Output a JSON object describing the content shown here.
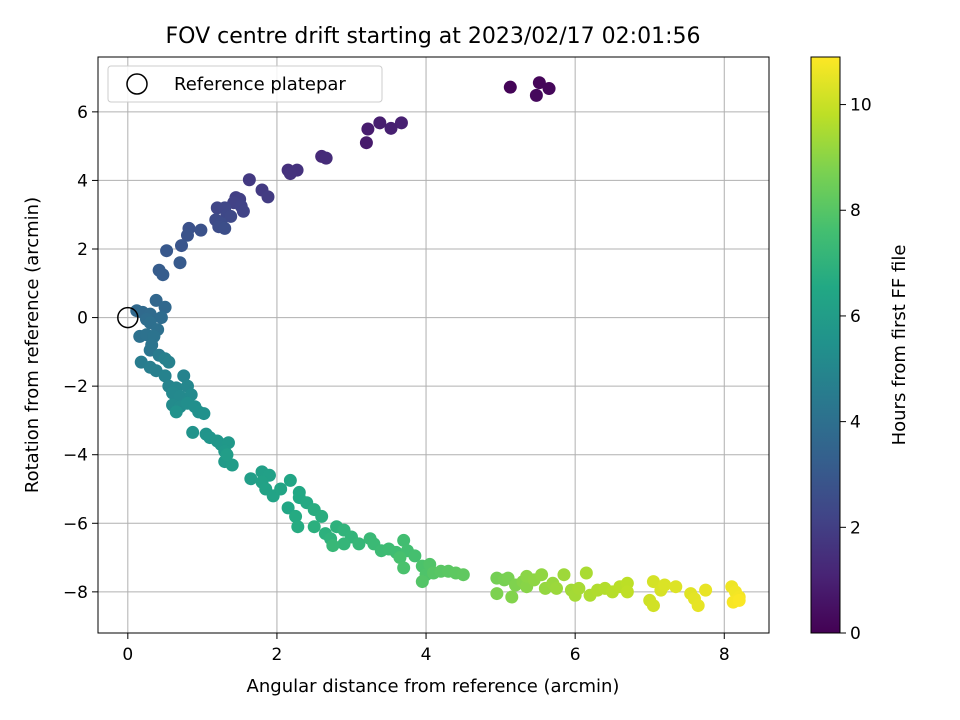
{
  "chart_data": {
    "type": "scatter",
    "title": "FOV centre drift starting at 2023/02/17 02:01:56",
    "xlabel": "Angular distance from reference (arcmin)",
    "ylabel": "Rotation from reference (arcmin)",
    "xlim": [
      -0.4,
      8.6
    ],
    "ylim": [
      -9.2,
      7.6
    ],
    "xticks": [
      0,
      2,
      4,
      6,
      8
    ],
    "yticks": [
      -8,
      -6,
      -4,
      -2,
      0,
      2,
      4,
      6
    ],
    "grid": true,
    "legend": {
      "position": "top-left",
      "entries": [
        "Reference platepar"
      ]
    },
    "reference": {
      "x": 0,
      "y": 0
    },
    "colorbar": {
      "label": "Hours from first FF file",
      "range": [
        0,
        10.9
      ],
      "ticks": [
        0,
        2,
        4,
        6,
        8,
        10
      ],
      "colormap": "viridis"
    },
    "points": [
      {
        "x": 5.13,
        "y": 6.72,
        "c": 0.1
      },
      {
        "x": 5.52,
        "y": 6.85,
        "c": 0.15
      },
      {
        "x": 5.65,
        "y": 6.68,
        "c": 0.2
      },
      {
        "x": 5.48,
        "y": 6.48,
        "c": 0.25
      },
      {
        "x": 3.2,
        "y": 5.1,
        "c": 0.8
      },
      {
        "x": 3.22,
        "y": 5.5,
        "c": 0.85
      },
      {
        "x": 3.38,
        "y": 5.68,
        "c": 0.9
      },
      {
        "x": 3.53,
        "y": 5.52,
        "c": 0.95
      },
      {
        "x": 3.67,
        "y": 5.68,
        "c": 1.0
      },
      {
        "x": 2.6,
        "y": 4.7,
        "c": 1.3
      },
      {
        "x": 2.66,
        "y": 4.65,
        "c": 1.35
      },
      {
        "x": 2.15,
        "y": 4.3,
        "c": 1.5
      },
      {
        "x": 2.27,
        "y": 4.3,
        "c": 1.55
      },
      {
        "x": 2.18,
        "y": 4.2,
        "c": 1.6
      },
      {
        "x": 1.63,
        "y": 4.02,
        "c": 1.8
      },
      {
        "x": 1.8,
        "y": 3.72,
        "c": 1.85
      },
      {
        "x": 1.88,
        "y": 3.52,
        "c": 1.9
      },
      {
        "x": 1.45,
        "y": 3.5,
        "c": 2.0
      },
      {
        "x": 1.5,
        "y": 3.45,
        "c": 2.05
      },
      {
        "x": 1.42,
        "y": 3.35,
        "c": 2.1
      },
      {
        "x": 1.52,
        "y": 3.25,
        "c": 2.15
      },
      {
        "x": 1.55,
        "y": 3.1,
        "c": 2.2
      },
      {
        "x": 1.2,
        "y": 3.2,
        "c": 2.25
      },
      {
        "x": 1.3,
        "y": 3.2,
        "c": 2.3
      },
      {
        "x": 1.33,
        "y": 3.0,
        "c": 2.35
      },
      {
        "x": 1.38,
        "y": 2.95,
        "c": 2.4
      },
      {
        "x": 1.18,
        "y": 2.85,
        "c": 2.45
      },
      {
        "x": 1.25,
        "y": 2.75,
        "c": 2.5
      },
      {
        "x": 1.22,
        "y": 2.65,
        "c": 2.55
      },
      {
        "x": 1.3,
        "y": 2.6,
        "c": 2.6
      },
      {
        "x": 0.82,
        "y": 2.6,
        "c": 2.7
      },
      {
        "x": 0.98,
        "y": 2.55,
        "c": 2.75
      },
      {
        "x": 0.8,
        "y": 2.4,
        "c": 2.8
      },
      {
        "x": 0.72,
        "y": 2.1,
        "c": 2.85
      },
      {
        "x": 0.52,
        "y": 1.95,
        "c": 3.0
      },
      {
        "x": 0.7,
        "y": 1.6,
        "c": 3.05
      },
      {
        "x": 0.42,
        "y": 1.38,
        "c": 3.15
      },
      {
        "x": 0.47,
        "y": 1.25,
        "c": 3.2
      },
      {
        "x": 0.38,
        "y": 0.5,
        "c": 3.6
      },
      {
        "x": 0.5,
        "y": 0.3,
        "c": 3.65
      },
      {
        "x": 0.12,
        "y": 0.2,
        "c": 3.7
      },
      {
        "x": 0.2,
        "y": 0.15,
        "c": 3.75
      },
      {
        "x": 0.3,
        "y": 0.1,
        "c": 3.8
      },
      {
        "x": 0.45,
        "y": 0.0,
        "c": 3.85
      },
      {
        "x": 0.25,
        "y": -0.05,
        "c": 3.9
      },
      {
        "x": 0.3,
        "y": -0.15,
        "c": 3.95
      },
      {
        "x": 0.4,
        "y": -0.35,
        "c": 4.0
      },
      {
        "x": 0.16,
        "y": -0.55,
        "c": 4.05
      },
      {
        "x": 0.25,
        "y": -0.5,
        "c": 4.1
      },
      {
        "x": 0.35,
        "y": -0.55,
        "c": 4.15
      },
      {
        "x": 0.32,
        "y": -0.8,
        "c": 4.2
      },
      {
        "x": 0.3,
        "y": -0.95,
        "c": 4.25
      },
      {
        "x": 0.42,
        "y": -1.1,
        "c": 4.5
      },
      {
        "x": 0.18,
        "y": -1.3,
        "c": 4.55
      },
      {
        "x": 0.3,
        "y": -1.45,
        "c": 4.6
      },
      {
        "x": 0.38,
        "y": -1.55,
        "c": 4.65
      },
      {
        "x": 0.5,
        "y": -1.2,
        "c": 4.7
      },
      {
        "x": 0.55,
        "y": -1.3,
        "c": 4.75
      },
      {
        "x": 0.5,
        "y": -1.7,
        "c": 4.8
      },
      {
        "x": 0.75,
        "y": -1.7,
        "c": 4.85
      },
      {
        "x": 0.55,
        "y": -2.0,
        "c": 4.9
      },
      {
        "x": 0.65,
        "y": -2.05,
        "c": 4.95
      },
      {
        "x": 0.8,
        "y": -2.0,
        "c": 5.0
      },
      {
        "x": 0.6,
        "y": -2.2,
        "c": 5.05
      },
      {
        "x": 0.7,
        "y": -2.3,
        "c": 5.1
      },
      {
        "x": 0.85,
        "y": -2.25,
        "c": 5.15
      },
      {
        "x": 0.6,
        "y": -2.55,
        "c": 5.2
      },
      {
        "x": 0.7,
        "y": -2.6,
        "c": 5.25
      },
      {
        "x": 0.8,
        "y": -2.5,
        "c": 5.3
      },
      {
        "x": 0.9,
        "y": -2.6,
        "c": 5.35
      },
      {
        "x": 0.95,
        "y": -2.75,
        "c": 5.4
      },
      {
        "x": 1.02,
        "y": -2.8,
        "c": 5.45
      },
      {
        "x": 0.65,
        "y": -2.75,
        "c": 5.5
      },
      {
        "x": 0.87,
        "y": -3.35,
        "c": 5.55
      },
      {
        "x": 1.05,
        "y": -3.4,
        "c": 5.6
      },
      {
        "x": 1.1,
        "y": -3.5,
        "c": 5.65
      },
      {
        "x": 1.2,
        "y": -3.6,
        "c": 5.7
      },
      {
        "x": 1.25,
        "y": -3.7,
        "c": 5.75
      },
      {
        "x": 1.35,
        "y": -3.65,
        "c": 5.8
      },
      {
        "x": 1.3,
        "y": -3.9,
        "c": 5.85
      },
      {
        "x": 1.3,
        "y": -4.2,
        "c": 5.9
      },
      {
        "x": 1.4,
        "y": -4.3,
        "c": 5.95
      },
      {
        "x": 1.33,
        "y": -4.0,
        "c": 6.0
      },
      {
        "x": 1.65,
        "y": -4.7,
        "c": 6.05
      },
      {
        "x": 1.8,
        "y": -4.5,
        "c": 6.1
      },
      {
        "x": 1.9,
        "y": -4.6,
        "c": 6.15
      },
      {
        "x": 1.8,
        "y": -4.8,
        "c": 6.2
      },
      {
        "x": 1.85,
        "y": -5.0,
        "c": 6.25
      },
      {
        "x": 1.95,
        "y": -5.2,
        "c": 6.3
      },
      {
        "x": 2.05,
        "y": -5.0,
        "c": 6.35
      },
      {
        "x": 2.18,
        "y": -4.75,
        "c": 6.4
      },
      {
        "x": 2.15,
        "y": -5.55,
        "c": 6.45
      },
      {
        "x": 2.3,
        "y": -5.1,
        "c": 6.5
      },
      {
        "x": 2.3,
        "y": -5.25,
        "c": 6.55
      },
      {
        "x": 2.4,
        "y": -5.4,
        "c": 6.6
      },
      {
        "x": 2.25,
        "y": -5.8,
        "c": 6.65
      },
      {
        "x": 2.28,
        "y": -6.1,
        "c": 6.7
      },
      {
        "x": 2.5,
        "y": -5.6,
        "c": 6.75
      },
      {
        "x": 2.6,
        "y": -5.8,
        "c": 6.8
      },
      {
        "x": 2.5,
        "y": -6.1,
        "c": 6.85
      },
      {
        "x": 2.65,
        "y": -6.3,
        "c": 6.9
      },
      {
        "x": 2.8,
        "y": -6.1,
        "c": 6.95
      },
      {
        "x": 2.72,
        "y": -6.45,
        "c": 7.0
      },
      {
        "x": 2.9,
        "y": -6.2,
        "c": 7.05
      },
      {
        "x": 3.0,
        "y": -6.4,
        "c": 7.1
      },
      {
        "x": 2.9,
        "y": -6.6,
        "c": 7.15
      },
      {
        "x": 3.1,
        "y": -6.6,
        "c": 7.2
      },
      {
        "x": 2.75,
        "y": -6.65,
        "c": 7.25
      },
      {
        "x": 3.25,
        "y": -6.45,
        "c": 7.3
      },
      {
        "x": 3.3,
        "y": -6.6,
        "c": 7.35
      },
      {
        "x": 3.4,
        "y": -6.8,
        "c": 7.4
      },
      {
        "x": 3.5,
        "y": -6.75,
        "c": 7.45
      },
      {
        "x": 3.6,
        "y": -6.85,
        "c": 7.5
      },
      {
        "x": 3.7,
        "y": -6.5,
        "c": 7.55
      },
      {
        "x": 3.75,
        "y": -6.8,
        "c": 7.6
      },
      {
        "x": 3.85,
        "y": -6.95,
        "c": 7.65
      },
      {
        "x": 3.65,
        "y": -7.0,
        "c": 7.7
      },
      {
        "x": 3.7,
        "y": -7.3,
        "c": 7.75
      },
      {
        "x": 3.95,
        "y": -7.25,
        "c": 7.8
      },
      {
        "x": 4.0,
        "y": -7.5,
        "c": 7.85
      },
      {
        "x": 4.05,
        "y": -7.2,
        "c": 7.9
      },
      {
        "x": 3.95,
        "y": -7.7,
        "c": 7.95
      },
      {
        "x": 4.1,
        "y": -7.45,
        "c": 8.0
      },
      {
        "x": 4.2,
        "y": -7.4,
        "c": 8.05
      },
      {
        "x": 4.3,
        "y": -7.4,
        "c": 8.1
      },
      {
        "x": 4.4,
        "y": -7.45,
        "c": 8.15
      },
      {
        "x": 4.5,
        "y": -7.5,
        "c": 8.2
      },
      {
        "x": 4.95,
        "y": -7.6,
        "c": 8.6
      },
      {
        "x": 5.05,
        "y": -7.65,
        "c": 8.65
      },
      {
        "x": 5.1,
        "y": -7.6,
        "c": 8.7
      },
      {
        "x": 4.95,
        "y": -8.05,
        "c": 8.75
      },
      {
        "x": 5.2,
        "y": -7.8,
        "c": 8.8
      },
      {
        "x": 5.15,
        "y": -8.15,
        "c": 8.85
      },
      {
        "x": 5.3,
        "y": -7.7,
        "c": 8.9
      },
      {
        "x": 5.35,
        "y": -7.85,
        "c": 8.95
      },
      {
        "x": 5.35,
        "y": -7.55,
        "c": 9.0
      },
      {
        "x": 5.45,
        "y": -7.65,
        "c": 9.05
      },
      {
        "x": 5.55,
        "y": -7.5,
        "c": 9.1
      },
      {
        "x": 5.6,
        "y": -7.9,
        "c": 9.15
      },
      {
        "x": 5.7,
        "y": -7.75,
        "c": 9.2
      },
      {
        "x": 5.75,
        "y": -7.9,
        "c": 9.25
      },
      {
        "x": 5.85,
        "y": -7.5,
        "c": 9.3
      },
      {
        "x": 5.95,
        "y": -7.95,
        "c": 9.35
      },
      {
        "x": 6.0,
        "y": -8.1,
        "c": 9.4
      },
      {
        "x": 6.05,
        "y": -7.9,
        "c": 9.45
      },
      {
        "x": 6.15,
        "y": -7.45,
        "c": 9.5
      },
      {
        "x": 6.2,
        "y": -8.1,
        "c": 9.55
      },
      {
        "x": 6.3,
        "y": -7.95,
        "c": 9.6
      },
      {
        "x": 6.4,
        "y": -7.9,
        "c": 9.65
      },
      {
        "x": 6.5,
        "y": -8.0,
        "c": 9.7
      },
      {
        "x": 6.6,
        "y": -7.85,
        "c": 9.75
      },
      {
        "x": 6.7,
        "y": -7.75,
        "c": 9.8
      },
      {
        "x": 6.7,
        "y": -8.0,
        "c": 9.85
      },
      {
        "x": 7.0,
        "y": -8.25,
        "c": 10.1
      },
      {
        "x": 7.05,
        "y": -8.4,
        "c": 10.15
      },
      {
        "x": 7.05,
        "y": -7.7,
        "c": 10.2
      },
      {
        "x": 7.15,
        "y": -7.95,
        "c": 10.25
      },
      {
        "x": 7.2,
        "y": -7.8,
        "c": 10.3
      },
      {
        "x": 7.35,
        "y": -7.85,
        "c": 10.35
      },
      {
        "x": 7.55,
        "y": -8.05,
        "c": 10.4
      },
      {
        "x": 7.6,
        "y": -8.2,
        "c": 10.45
      },
      {
        "x": 7.65,
        "y": -8.4,
        "c": 10.5
      },
      {
        "x": 7.75,
        "y": -7.95,
        "c": 10.55
      },
      {
        "x": 8.1,
        "y": -7.85,
        "c": 10.65
      },
      {
        "x": 8.15,
        "y": -8.0,
        "c": 10.7
      },
      {
        "x": 8.2,
        "y": -8.15,
        "c": 10.75
      },
      {
        "x": 8.12,
        "y": -8.3,
        "c": 10.8
      },
      {
        "x": 8.2,
        "y": -8.25,
        "c": 10.85
      }
    ]
  }
}
